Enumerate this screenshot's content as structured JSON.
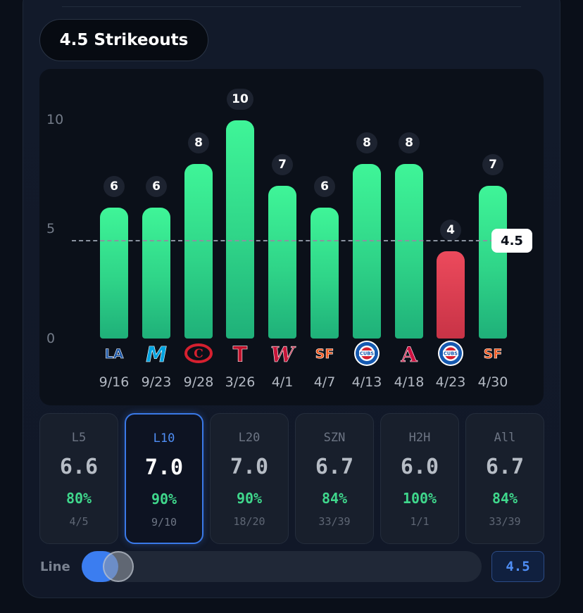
{
  "prop": {
    "title": "4.5 Strikeouts"
  },
  "chart_data": {
    "type": "bar",
    "y_ticks": [
      "10",
      "5",
      "0"
    ],
    "ylim": [
      0,
      10
    ],
    "line": 4.5,
    "line_label": "4.5",
    "games": [
      {
        "date": "9/16",
        "value": 6,
        "label": "6",
        "result": "over",
        "team_logo": "dodgers-logo",
        "logo_text": "LA",
        "logo_color": "#1c56a6"
      },
      {
        "date": "9/23",
        "value": 6,
        "label": "6",
        "result": "over",
        "team_logo": "marlins-logo",
        "logo_text": "M",
        "logo_color": "#00a3e0"
      },
      {
        "date": "9/28",
        "value": 8,
        "label": "8",
        "result": "over",
        "team_logo": "reds-logo",
        "logo_text": "C",
        "logo_color": "#d6202f"
      },
      {
        "date": "3/26",
        "value": 10,
        "label": "10",
        "result": "over",
        "team_logo": "rangers-logo",
        "logo_text": "T",
        "logo_color": "#c0112b"
      },
      {
        "date": "4/1",
        "value": 7,
        "label": "7",
        "result": "over",
        "team_logo": "nationals-logo",
        "logo_text": "W",
        "logo_color": "#c8163a"
      },
      {
        "date": "4/7",
        "value": 6,
        "label": "6",
        "result": "over",
        "team_logo": "giants-logo",
        "logo_text": "SF",
        "logo_color": "#f15a22"
      },
      {
        "date": "4/13",
        "value": 8,
        "label": "8",
        "result": "over",
        "team_logo": "cubs-logo",
        "logo_text": "CUBS",
        "logo_color": "#1559b0"
      },
      {
        "date": "4/18",
        "value": 8,
        "label": "8",
        "result": "over",
        "team_logo": "braves-logo",
        "logo_text": "A",
        "logo_color": "#ce1141"
      },
      {
        "date": "4/23",
        "value": 4,
        "label": "4",
        "result": "under",
        "team_logo": "cubs-logo",
        "logo_text": "CUBS",
        "logo_color": "#1559b0"
      },
      {
        "date": "4/30",
        "value": 7,
        "label": "7",
        "result": "over",
        "team_logo": "giants-logo",
        "logo_text": "SF",
        "logo_color": "#f15a22"
      }
    ],
    "colors": {
      "over": "#3ff598",
      "under": "#e2424f",
      "line": "#8b93a0"
    }
  },
  "tabs": [
    {
      "name": "L5",
      "avg": "6.6",
      "pct": "80%",
      "frac": "4/5",
      "active": false
    },
    {
      "name": "L10",
      "avg": "7.0",
      "pct": "90%",
      "frac": "9/10",
      "active": true
    },
    {
      "name": "L20",
      "avg": "7.0",
      "pct": "90%",
      "frac": "18/20",
      "active": false
    },
    {
      "name": "SZN",
      "avg": "6.7",
      "pct": "84%",
      "frac": "33/39",
      "active": false
    },
    {
      "name": "H2H",
      "avg": "6.0",
      "pct": "100%",
      "frac": "1/1",
      "active": false
    },
    {
      "name": "All",
      "avg": "6.7",
      "pct": "84%",
      "frac": "33/39",
      "active": false
    }
  ],
  "line_control": {
    "label": "Line",
    "value": "4.5",
    "slider_level": 0.1
  }
}
